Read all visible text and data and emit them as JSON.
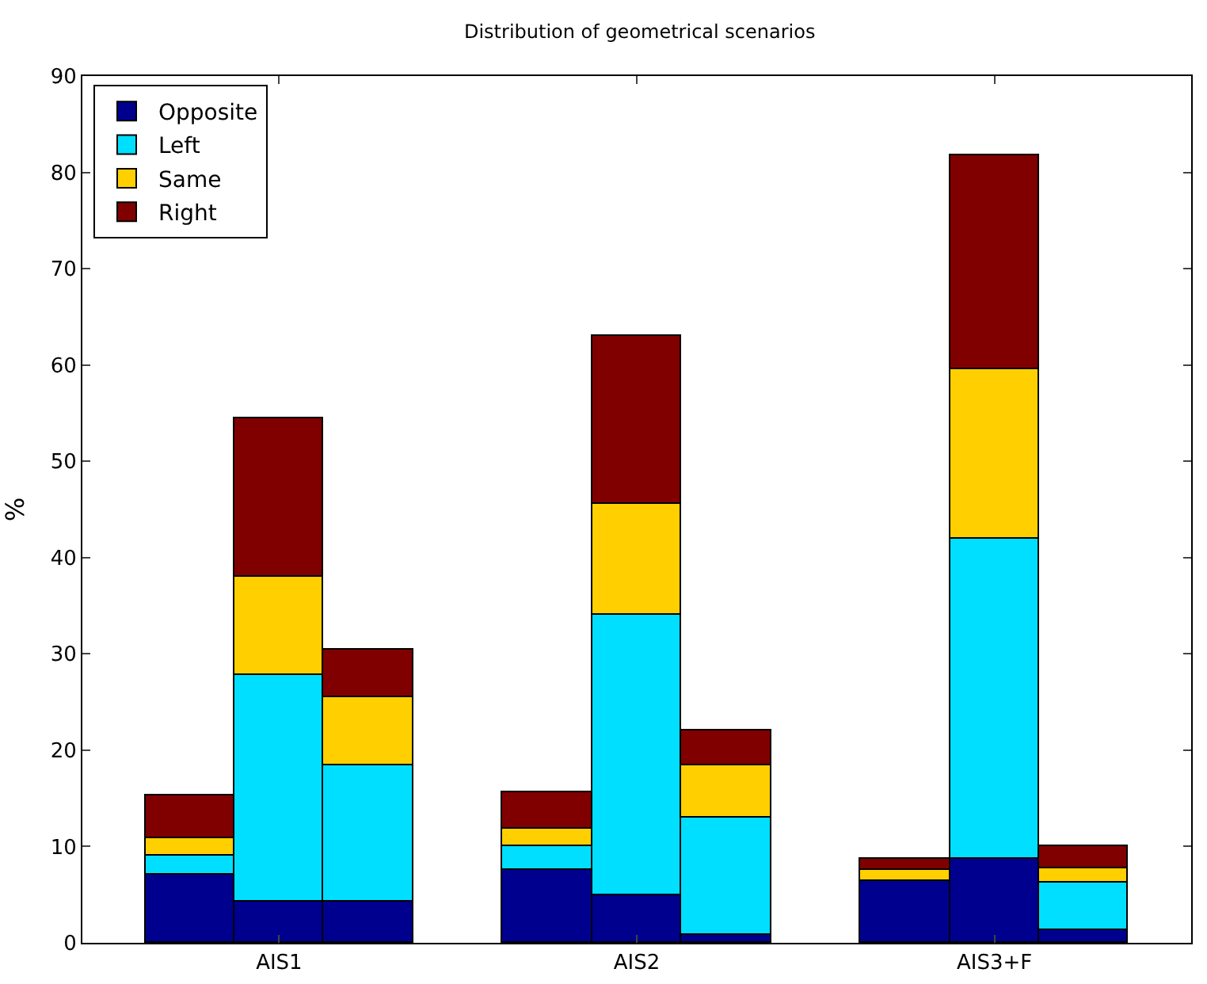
{
  "chart_data": {
    "type": "bar",
    "title": "Distribution of geometrical scenarios",
    "ylabel": "%",
    "categories": [
      null,
      "AIS1",
      null,
      null,
      null,
      "AIS2",
      null,
      null,
      null,
      "AIS3+F",
      null
    ],
    "stacked": true,
    "ylim": [
      0,
      90
    ],
    "yticks": [
      0,
      10,
      20,
      30,
      40,
      50,
      60,
      70,
      80,
      90
    ],
    "grid": false,
    "legend": "top left",
    "series": [
      {
        "name": "Opposite",
        "color": "#00008f",
        "values": [
          7,
          4.3,
          4.3,
          null,
          7.5,
          5,
          0.8,
          null,
          6.4,
          8.8,
          1.3
        ]
      },
      {
        "name": "Left",
        "color": "#00dfff",
        "values": [
          2,
          23.5,
          14.1,
          null,
          2.5,
          29,
          12.2,
          null,
          0,
          33.2,
          5
        ]
      },
      {
        "name": "Same",
        "color": "#ffcf00",
        "values": [
          1.8,
          10.2,
          7.1,
          null,
          1.8,
          11.5,
          5.4,
          null,
          1.2,
          17.5,
          1.5
        ]
      },
      {
        "name": "Right",
        "color": "#800000",
        "values": [
          4.5,
          16.5,
          5,
          null,
          3.8,
          17.5,
          3.6,
          null,
          1.1,
          22.2,
          2.2
        ]
      }
    ]
  }
}
